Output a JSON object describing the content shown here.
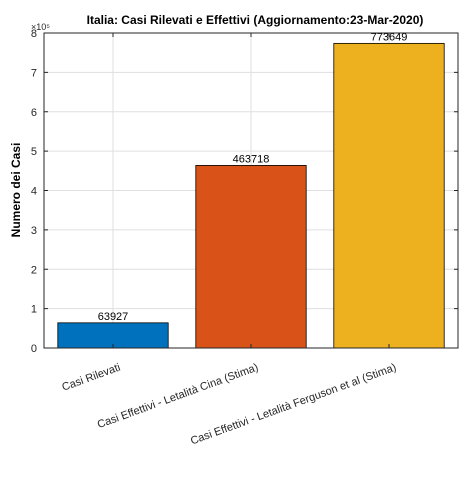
{
  "chart_data": {
    "type": "bar",
    "title": "Italia: Casi Rilevati e Effettivi (Aggiornamento:23-Mar-2020)",
    "xlabel": "",
    "ylabel": "Numero dei Casi",
    "y_multiplier_label": "×10⁵",
    "y_scale_factor": 100000,
    "ylim": [
      0,
      800000
    ],
    "yticks": [
      0,
      1,
      2,
      3,
      4,
      5,
      6,
      7,
      8
    ],
    "grid": true,
    "categories": [
      "Casi Rilevati",
      "Casi Effettivi - Letalità Cina (Stima)",
      "Casi Effettivi - Letalità Ferguson et al (Stima)"
    ],
    "values": [
      63927,
      463718,
      773649
    ],
    "data_labels": [
      "63927",
      "463718",
      "773649"
    ],
    "colors": [
      "#0072BD",
      "#D95319",
      "#EDB120"
    ]
  }
}
